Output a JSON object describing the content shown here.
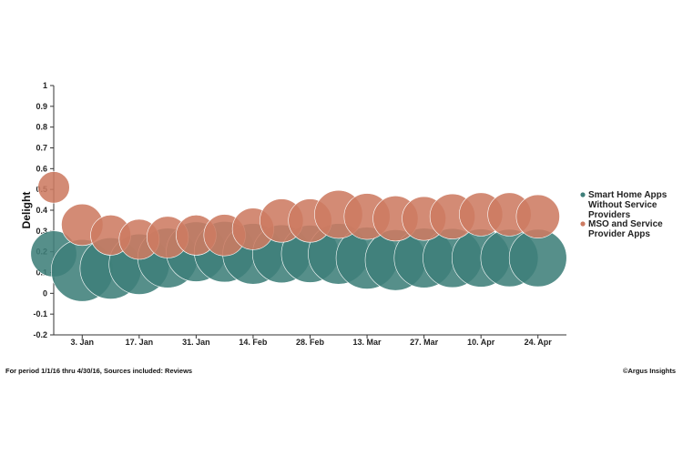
{
  "chart_data": {
    "type": "scatter",
    "ylabel": "Delight",
    "ylim": [
      -0.2,
      1
    ],
    "yticks": [
      "1",
      "0.9",
      "0.8",
      "0.7",
      "0.6",
      "0.5",
      "0.4",
      "0.3",
      "0.2",
      "0.1",
      "0",
      "-0.1",
      "-0.2"
    ],
    "xlim": [
      "2015-12-27",
      "2016-05-01"
    ],
    "xticks": [
      {
        "date": "2016-01-03",
        "label": "3. Jan"
      },
      {
        "date": "2016-01-17",
        "label": "17. Jan"
      },
      {
        "date": "2016-01-31",
        "label": "31. Jan"
      },
      {
        "date": "2016-02-14",
        "label": "14. Feb"
      },
      {
        "date": "2016-02-28",
        "label": "28. Feb"
      },
      {
        "date": "2016-03-13",
        "label": "13. Mar"
      },
      {
        "date": "2016-03-27",
        "label": "27. Mar"
      },
      {
        "date": "2016-04-10",
        "label": "10. Apr"
      },
      {
        "date": "2016-04-24",
        "label": "24. Apr"
      }
    ],
    "bubble_size_encoding": "relative volume",
    "legend_position": "right",
    "series": [
      {
        "name": "Smart Home Apps Without Service Providers",
        "color": "#3f7f7a",
        "points": [
          {
            "x": "2015-12-27",
            "y": 0.19,
            "size": 0.55
          },
          {
            "x": "2016-01-03",
            "y": 0.11,
            "size": 1.0
          },
          {
            "x": "2016-01-10",
            "y": 0.12,
            "size": 0.98
          },
          {
            "x": "2016-01-17",
            "y": 0.14,
            "size": 0.95
          },
          {
            "x": "2016-01-24",
            "y": 0.17,
            "size": 0.93
          },
          {
            "x": "2016-01-31",
            "y": 0.2,
            "size": 0.93
          },
          {
            "x": "2016-02-07",
            "y": 0.2,
            "size": 0.96
          },
          {
            "x": "2016-02-14",
            "y": 0.19,
            "size": 0.96
          },
          {
            "x": "2016-02-21",
            "y": 0.19,
            "size": 0.88
          },
          {
            "x": "2016-02-28",
            "y": 0.19,
            "size": 0.86
          },
          {
            "x": "2016-03-06",
            "y": 0.19,
            "size": 0.96
          },
          {
            "x": "2016-03-13",
            "y": 0.17,
            "size": 1.0
          },
          {
            "x": "2016-03-20",
            "y": 0.16,
            "size": 0.96
          },
          {
            "x": "2016-03-27",
            "y": 0.17,
            "size": 0.93
          },
          {
            "x": "2016-04-03",
            "y": 0.17,
            "size": 0.91
          },
          {
            "x": "2016-04-10",
            "y": 0.17,
            "size": 0.88
          },
          {
            "x": "2016-04-17",
            "y": 0.17,
            "size": 0.86
          },
          {
            "x": "2016-04-24",
            "y": 0.17,
            "size": 0.86
          }
        ]
      },
      {
        "name": "MSO and Service Provider Apps",
        "color": "#cd7b62",
        "points": [
          {
            "x": "2015-12-27",
            "y": 0.51,
            "size": 0.26
          },
          {
            "x": "2016-01-03",
            "y": 0.33,
            "size": 0.45
          },
          {
            "x": "2016-01-10",
            "y": 0.28,
            "size": 0.42
          },
          {
            "x": "2016-01-17",
            "y": 0.26,
            "size": 0.42
          },
          {
            "x": "2016-01-24",
            "y": 0.27,
            "size": 0.45
          },
          {
            "x": "2016-01-31",
            "y": 0.28,
            "size": 0.42
          },
          {
            "x": "2016-02-07",
            "y": 0.28,
            "size": 0.45
          },
          {
            "x": "2016-02-14",
            "y": 0.31,
            "size": 0.45
          },
          {
            "x": "2016-02-21",
            "y": 0.35,
            "size": 0.49
          },
          {
            "x": "2016-02-28",
            "y": 0.35,
            "size": 0.49
          },
          {
            "x": "2016-03-06",
            "y": 0.38,
            "size": 0.6
          },
          {
            "x": "2016-03-13",
            "y": 0.37,
            "size": 0.55
          },
          {
            "x": "2016-03-20",
            "y": 0.36,
            "size": 0.53
          },
          {
            "x": "2016-03-27",
            "y": 0.36,
            "size": 0.5
          },
          {
            "x": "2016-04-03",
            "y": 0.37,
            "size": 0.53
          },
          {
            "x": "2016-04-10",
            "y": 0.38,
            "size": 0.49
          },
          {
            "x": "2016-04-17",
            "y": 0.38,
            "size": 0.49
          },
          {
            "x": "2016-04-24",
            "y": 0.37,
            "size": 0.49
          }
        ]
      }
    ]
  },
  "legend": {
    "smart_home": [
      "Smart Home Apps",
      "Without Service",
      "Providers"
    ],
    "mso": [
      "MSO and Service",
      "Provider Apps"
    ]
  },
  "footer": {
    "note": "For period 1/1/16 thru 4/30/16, Sources included: Reviews",
    "credit": "©Argus Insights"
  }
}
